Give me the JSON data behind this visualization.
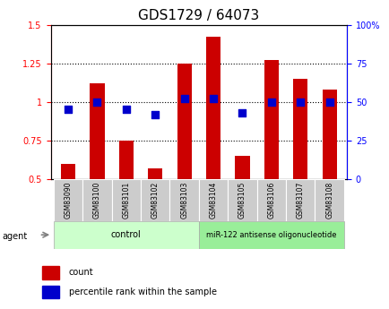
{
  "title": "GDS1729 / 64073",
  "samples": [
    "GSM83090",
    "GSM83100",
    "GSM83101",
    "GSM83102",
    "GSM83103",
    "GSM83104",
    "GSM83105",
    "GSM83106",
    "GSM83107",
    "GSM83108"
  ],
  "red_values": [
    0.6,
    1.12,
    0.75,
    0.57,
    1.25,
    1.42,
    0.65,
    1.27,
    1.15,
    1.08
  ],
  "blue_pct": [
    45,
    50,
    45,
    42,
    52,
    52,
    43,
    50,
    50,
    50
  ],
  "ylim_left": [
    0.5,
    1.5
  ],
  "ylim_right": [
    0,
    100
  ],
  "yticks_left": [
    0.5,
    0.75,
    1.0,
    1.25,
    1.5
  ],
  "yticks_right": [
    0,
    25,
    50,
    75,
    100
  ],
  "ytick_labels_left": [
    "0.5",
    "0.75",
    "1",
    "1.25",
    "1.5"
  ],
  "ytick_labels_right": [
    "0",
    "25",
    "50",
    "75",
    "100%"
  ],
  "hlines": [
    0.75,
    1.0,
    1.25
  ],
  "bar_color": "#cc0000",
  "dot_color": "#0000cc",
  "bar_width": 0.5,
  "ctrl_n": 5,
  "treat_n": 5,
  "control_label": "control",
  "treatment_label": "miR-122 antisense oligonucleotide",
  "agent_label": "agent",
  "legend_count": "count",
  "legend_pct": "percentile rank within the sample",
  "control_bg": "#ccffcc",
  "treatment_bg": "#99ee99",
  "tick_bg": "#cccccc",
  "title_fontsize": 11,
  "tick_fontsize": 7,
  "label_fontsize": 8
}
